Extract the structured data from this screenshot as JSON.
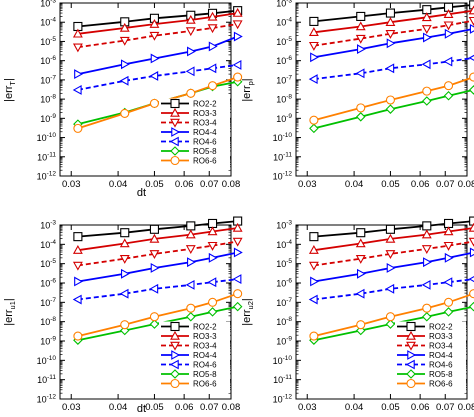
{
  "chart_data": [
    {
      "type": "line",
      "xlabel": "dt",
      "ylabel": "|err_T|",
      "ylabel_main": "|err",
      "ylabel_sub": "T",
      "ylabel_close": "|",
      "ylim": [
        1e-12,
        0.001
      ],
      "yscale": "log",
      "xscale": "log",
      "xlim": [
        0.028,
        0.08
      ],
      "x_ticks": [
        0.03,
        0.04,
        0.05,
        0.06,
        0.07,
        0.08
      ],
      "x_tick_labels": [
        "0.03",
        "0.04",
        "0.05",
        "0.06",
        "0.07",
        "0.08"
      ],
      "y_tick_labels": [
        "10-12",
        "10-11",
        "10-10",
        "10-9",
        "10-8",
        "10-7",
        "10-6",
        "10-5",
        "10-4",
        "10-3"
      ],
      "legend": "bottom-right",
      "x": [
        0.03125,
        0.0416667,
        0.05,
        0.0625,
        0.0714286,
        0.0833333
      ],
      "series": [
        {
          "name": "RO2-2",
          "color": "#000000",
          "dash": "solid",
          "marker": "square",
          "values": [
            6e-05,
            0.000105,
            0.00016,
            0.00023,
            0.00029,
            0.0004
          ]
        },
        {
          "name": "RO3-3",
          "color": "#d40000",
          "dash": "solid",
          "marker": "triangle-up",
          "values": [
            2.5e-05,
            5e-05,
            8e-05,
            0.00013,
            0.00019,
            0.0003
          ]
        },
        {
          "name": "RO3-4",
          "color": "#d40000",
          "dash": "dashed",
          "marker": "triangle-down",
          "values": [
            5e-06,
            1.1e-05,
            2e-05,
            3.5e-05,
            5e-05,
            8e-05
          ]
        },
        {
          "name": "RO4-4",
          "color": "#0000ff",
          "dash": "solid",
          "marker": "triangle-right",
          "values": [
            2e-07,
            6.5e-07,
            1.3e-06,
            3e-06,
            5.5e-06,
            1.8e-05
          ]
        },
        {
          "name": "RO4-6",
          "color": "#0000ff",
          "dash": "dashed",
          "marker": "triangle-left",
          "values": [
            3e-08,
            9e-08,
            1.6e-07,
            2.8e-07,
            4e-07,
            6e-07
          ]
        },
        {
          "name": "RO5-8",
          "color": "#00c000",
          "dash": "solid",
          "marker": "diamond",
          "values": [
            5e-10,
            2e-09,
            6e-09,
            2e-08,
            4.5e-08,
            8e-08
          ]
        },
        {
          "name": "RO6-6",
          "color": "#ff8000",
          "dash": "solid",
          "marker": "circle",
          "values": [
            3e-10,
            1.8e-09,
            6e-09,
            2e-08,
            5e-08,
            1.4e-07
          ]
        }
      ]
    },
    {
      "type": "line",
      "xlabel": "",
      "ylabel": "|err_p|",
      "ylabel_main": "|err",
      "ylabel_sub": "p",
      "ylabel_close": "|",
      "ylim": [
        1e-12,
        0.001
      ],
      "yscale": "log",
      "xscale": "log",
      "xlim": [
        0.028,
        0.08
      ],
      "x_ticks": [
        0.03,
        0.04,
        0.05,
        0.06,
        0.07,
        0.08
      ],
      "x_tick_labels": [
        "0.03",
        "0.04",
        "0.05",
        "0.06",
        "0.07",
        "0.08"
      ],
      "y_tick_labels": [
        "10-12",
        "10-11",
        "10-10",
        "10-9",
        "10-8",
        "10-7",
        "10-6",
        "10-5",
        "10-4",
        "10-3"
      ],
      "legend": "none",
      "x": [
        0.03125,
        0.0416667,
        0.05,
        0.0625,
        0.0714286,
        0.0833333
      ],
      "series": [
        {
          "name": "RO2-2",
          "color": "#000000",
          "dash": "solid",
          "marker": "square",
          "values": [
            0.00011,
            0.0002,
            0.0003,
            0.00045,
            0.0006,
            0.0008
          ]
        },
        {
          "name": "RO3-3",
          "color": "#d40000",
          "dash": "solid",
          "marker": "triangle-up",
          "values": [
            3e-05,
            6e-05,
            0.0001,
            0.00018,
            0.00026,
            0.0004
          ]
        },
        {
          "name": "RO3-4",
          "color": "#d40000",
          "dash": "dashed",
          "marker": "triangle-down",
          "values": [
            6e-06,
            1.4e-05,
            2.5e-05,
            4.5e-05,
            7e-05,
            0.00012
          ]
        },
        {
          "name": "RO4-4",
          "color": "#0000ff",
          "dash": "solid",
          "marker": "triangle-right",
          "values": [
            1.5e-06,
            4e-06,
            8e-06,
            1.6e-05,
            2.5e-05,
            4.5e-05
          ]
        },
        {
          "name": "RO4-6",
          "color": "#0000ff",
          "dash": "dashed",
          "marker": "triangle-left",
          "values": [
            1.1e-07,
            2.2e-07,
            4e-07,
            6.5e-07,
            9e-07,
            1.4e-06
          ]
        },
        {
          "name": "RO5-8",
          "color": "#00c000",
          "dash": "solid",
          "marker": "diamond",
          "values": [
            3e-10,
            1.2e-09,
            3e-09,
            8e-09,
            1.5e-08,
            3e-08
          ]
        },
        {
          "name": "RO6-6",
          "color": "#ff8000",
          "dash": "solid",
          "marker": "circle",
          "values": [
            8e-10,
            3.5e-09,
            9e-09,
            2.6e-08,
            5e-08,
            1.4e-07
          ]
        }
      ]
    },
    {
      "type": "line",
      "xlabel": "dt",
      "ylabel": "|err_u1|",
      "ylabel_main": "|err",
      "ylabel_sub": "u1",
      "ylabel_close": "|",
      "ylim": [
        1e-12,
        0.001
      ],
      "yscale": "log",
      "xscale": "log",
      "xlim": [
        0.028,
        0.08
      ],
      "x_ticks": [
        0.03,
        0.04,
        0.05,
        0.06,
        0.07,
        0.08
      ],
      "x_tick_labels": [
        "0.03",
        "0.04",
        "0.05",
        "0.06",
        "0.07",
        "0.08"
      ],
      "y_tick_labels": [
        "10-12",
        "10-11",
        "10-10",
        "10-9",
        "10-8",
        "10-7",
        "10-6",
        "10-5",
        "10-4",
        "10-3"
      ],
      "legend": "bottom-right",
      "x": [
        0.03125,
        0.0416667,
        0.05,
        0.0625,
        0.0714286,
        0.0833333
      ],
      "series": [
        {
          "name": "RO2-2",
          "color": "#000000",
          "dash": "solid",
          "marker": "square",
          "values": [
            0.00025,
            0.0004,
            0.0006,
            0.0009,
            0.0012,
            0.0016
          ]
        },
        {
          "name": "RO3-3",
          "color": "#d40000",
          "dash": "solid",
          "marker": "triangle-up",
          "values": [
            5e-05,
            0.00011,
            0.00019,
            0.00032,
            0.00046,
            0.0007
          ]
        },
        {
          "name": "RO3-4",
          "color": "#d40000",
          "dash": "dashed",
          "marker": "triangle-down",
          "values": [
            8e-06,
            1.8e-05,
            3.2e-05,
            5.8e-05,
            8.5e-05,
            0.00014
          ]
        },
        {
          "name": "RO4-4",
          "color": "#0000ff",
          "dash": "solid",
          "marker": "triangle-right",
          "values": [
            1.2e-06,
            3e-06,
            6e-06,
            1.2e-05,
            2e-05,
            3.8e-05
          ]
        },
        {
          "name": "RO4-6",
          "color": "#0000ff",
          "dash": "dashed",
          "marker": "triangle-left",
          "values": [
            1.4e-07,
            2.8e-07,
            5e-07,
            8e-07,
            1.1e-06,
            1.6e-06
          ]
        },
        {
          "name": "RO5-8",
          "color": "#00c000",
          "dash": "solid",
          "marker": "diamond",
          "values": [
            1.1e-09,
            3.5e-09,
            7.5e-09,
            1.8e-08,
            3.2e-08,
            6e-08
          ]
        },
        {
          "name": "RO6-6",
          "color": "#ff8000",
          "dash": "solid",
          "marker": "circle",
          "values": [
            1.8e-09,
            7e-09,
            1.8e-08,
            5e-08,
            1e-07,
            2.8e-07
          ]
        }
      ]
    },
    {
      "type": "line",
      "xlabel": "",
      "ylabel": "|err_u2|",
      "ylabel_main": "|err",
      "ylabel_sub": "u2",
      "ylabel_close": "|",
      "ylim": [
        1e-12,
        0.001
      ],
      "yscale": "log",
      "xscale": "log",
      "xlim": [
        0.028,
        0.08
      ],
      "x_ticks": [
        0.03,
        0.04,
        0.05,
        0.06,
        0.07,
        0.08
      ],
      "x_tick_labels": [
        "0.03",
        "0.04",
        "0.05",
        "0.06",
        "0.07",
        "0.08"
      ],
      "y_tick_labels": [
        "10-12",
        "10-11",
        "10-10",
        "10-9",
        "10-8",
        "10-7",
        "10-6",
        "10-5",
        "10-4",
        "10-3"
      ],
      "legend": "bottom-right",
      "x": [
        0.03125,
        0.0416667,
        0.05,
        0.0625,
        0.0714286,
        0.0833333
      ],
      "series": [
        {
          "name": "RO2-2",
          "color": "#000000",
          "dash": "solid",
          "marker": "square",
          "values": [
            0.00025,
            0.0004,
            0.0006,
            0.0009,
            0.0012,
            0.0016
          ]
        },
        {
          "name": "RO3-3",
          "color": "#d40000",
          "dash": "solid",
          "marker": "triangle-up",
          "values": [
            5e-05,
            0.00011,
            0.00019,
            0.00032,
            0.00046,
            0.0007
          ]
        },
        {
          "name": "RO3-4",
          "color": "#d40000",
          "dash": "dashed",
          "marker": "triangle-down",
          "values": [
            8e-06,
            1.8e-05,
            3.2e-05,
            5.8e-05,
            8.5e-05,
            0.00014
          ]
        },
        {
          "name": "RO4-4",
          "color": "#0000ff",
          "dash": "solid",
          "marker": "triangle-right",
          "values": [
            1.2e-06,
            3e-06,
            6e-06,
            1.2e-05,
            2e-05,
            3.8e-05
          ]
        },
        {
          "name": "RO4-6",
          "color": "#0000ff",
          "dash": "dashed",
          "marker": "triangle-left",
          "values": [
            1.4e-07,
            2.8e-07,
            5e-07,
            8e-07,
            1.1e-06,
            1.6e-06
          ]
        },
        {
          "name": "RO5-8",
          "color": "#00c000",
          "dash": "solid",
          "marker": "diamond",
          "values": [
            1.1e-09,
            3.5e-09,
            7.5e-09,
            1.8e-08,
            3.2e-08,
            6e-08
          ]
        },
        {
          "name": "RO6-6",
          "color": "#ff8000",
          "dash": "solid",
          "marker": "circle",
          "values": [
            1.8e-09,
            7e-09,
            1.8e-08,
            5e-08,
            1e-07,
            2.8e-07
          ]
        }
      ]
    }
  ]
}
